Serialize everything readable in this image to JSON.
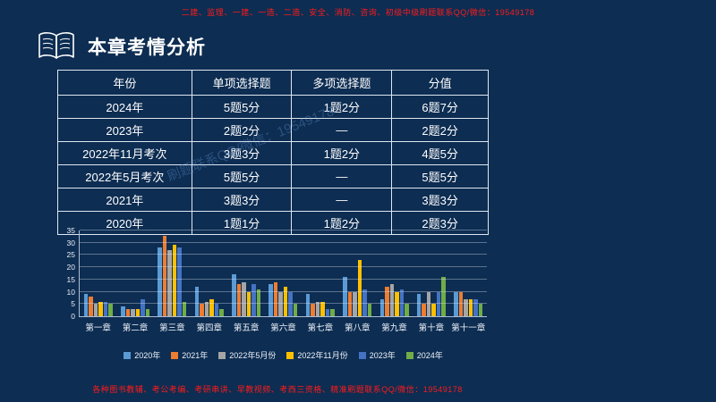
{
  "top_banner": {
    "text": "二建、监理、一建、一造、二造、安全、消防、咨询、初级中级刷题联系QQ/微信：19549178"
  },
  "bottom_banner": {
    "text": "各种图书教辅、考公考编、考研串讲、早教视频、考西三资格、精准刷题联系QQ/微信：19549178"
  },
  "header": {
    "title": "本章考情分析",
    "icon": "open-book-icon"
  },
  "watermark": "刷题联系QQ/微信：19549178",
  "table": {
    "headers": [
      "年份",
      "单项选择题",
      "多项选择题",
      "分值"
    ],
    "rows": [
      [
        "2024年",
        "5题5分",
        "1题2分",
        "6题7分"
      ],
      [
        "2023年",
        "2题2分",
        "—",
        "2题2分"
      ],
      [
        "2022年11月考次",
        "3题3分",
        "1题2分",
        "4题5分"
      ],
      [
        "2022年5月考次",
        "5题5分",
        "—",
        "5题5分"
      ],
      [
        "2021年",
        "3题3分",
        "—",
        "3题3分"
      ],
      [
        "2020年",
        "1题1分",
        "1题2分",
        "2题3分"
      ]
    ]
  },
  "chart_data": {
    "type": "bar",
    "title": "",
    "xlabel": "",
    "ylabel": "",
    "ylim": [
      0,
      35
    ],
    "ytick_step": 5,
    "grid": true,
    "legend_position": "bottom",
    "categories": [
      "第一章",
      "第二章",
      "第三章",
      "第四章",
      "第五章",
      "第六章",
      "第七章",
      "第八章",
      "第九章",
      "第十章",
      "第十一章"
    ],
    "series": [
      {
        "name": "2020年",
        "color": "#5B9BD5",
        "values": [
          9,
          4,
          28,
          12,
          17,
          13,
          9,
          16,
          7,
          9,
          10
        ]
      },
      {
        "name": "2021年",
        "color": "#ED7D31",
        "values": [
          8,
          3,
          33,
          5,
          13,
          14,
          5,
          10,
          12,
          5,
          10
        ]
      },
      {
        "name": "2022年5月份",
        "color": "#A5A5A5",
        "values": [
          5,
          3,
          27,
          6,
          14,
          10,
          6,
          10,
          13,
          10,
          7
        ]
      },
      {
        "name": "2022年11月份",
        "color": "#FFC000",
        "values": [
          6,
          3,
          29,
          7,
          10,
          12,
          6,
          23,
          10,
          5,
          7
        ]
      },
      {
        "name": "2023年",
        "color": "#4472C4",
        "values": [
          6,
          7,
          28,
          5,
          13,
          10,
          3,
          11,
          11,
          10,
          7
        ]
      },
      {
        "name": "2024年",
        "color": "#70AD47",
        "values": [
          5,
          3,
          6,
          3,
          11,
          5,
          3,
          5,
          5,
          16,
          5
        ]
      }
    ]
  },
  "colors": {
    "background": "#0d2d52",
    "banner_text": "#ff1a1a",
    "table_border": "#dfe7f2",
    "text": "#ffffff"
  }
}
